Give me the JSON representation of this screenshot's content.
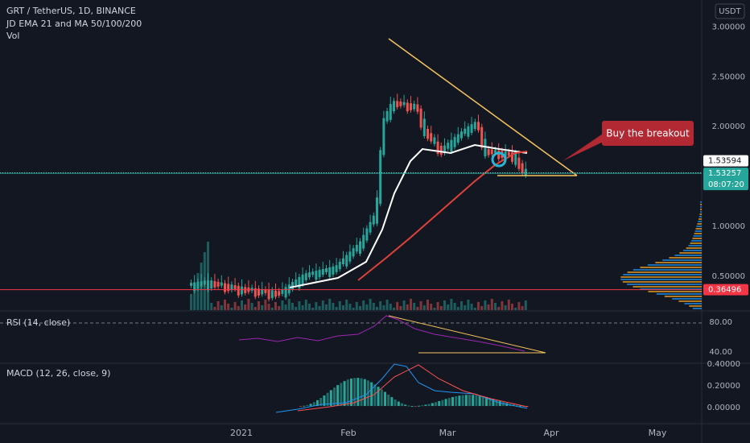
{
  "header": {
    "symbol": "GRT / TetherUS, 1D, BINANCE",
    "indicator": "JD EMA 21 and MA 50/100/200",
    "volume": "Vol"
  },
  "currency": "USDT",
  "price_axis": {
    "range": [
      0.16,
      3.27
    ],
    "ticks": [
      {
        "value": 3,
        "label": "3.00000"
      },
      {
        "value": 2.5,
        "label": "2.50000"
      },
      {
        "value": 2,
        "label": "2.00000"
      },
      {
        "value": 1,
        "label": "1.00000"
      },
      {
        "value": 0.5,
        "label": "0.50000"
      }
    ]
  },
  "price_labels": [
    {
      "value": 1.53594,
      "label": "1.53594",
      "color": "#ffffff"
    },
    {
      "value": 1.53257,
      "label": "1.53257",
      "color": "#26a69a",
      "countdown": "08:07:20"
    },
    {
      "value": 0.36496,
      "label": "0.36496",
      "color": "#f23645"
    }
  ],
  "annotation": "Buy the breakout",
  "rsi": {
    "title": "RSI (14, close)",
    "range": [
      25.6,
      94.4
    ],
    "ticks": [
      {
        "value": 80,
        "label": "80.00"
      },
      {
        "value": 40,
        "label": "40.00"
      }
    ]
  },
  "macd": {
    "title": "MACD (12, 26, close, 9)",
    "range": [
      -0.14,
      0.4
    ],
    "ticks": [
      {
        "value": 0.4,
        "label": "0.40000"
      },
      {
        "value": 0.2,
        "label": "0.20000"
      },
      {
        "value": 0,
        "label": "0.00000"
      }
    ]
  },
  "time_axis": [
    "2021",
    "Feb",
    "Mar",
    "Apr",
    "May"
  ]
}
